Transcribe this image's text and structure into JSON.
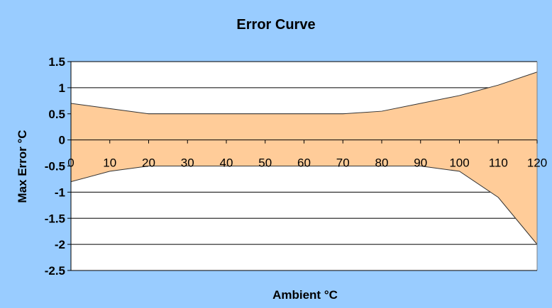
{
  "chart_data": {
    "type": "area",
    "title": "Error Curve",
    "xlabel": "Ambient °C",
    "ylabel": "Max Error °C",
    "x": [
      0,
      10,
      20,
      30,
      40,
      50,
      60,
      70,
      80,
      90,
      100,
      110,
      120
    ],
    "series": [
      {
        "values": [
          0.7,
          0.6,
          0.5,
          0.5,
          0.5,
          0.5,
          0.5,
          0.5,
          0.55,
          0.7,
          0.85,
          1.05,
          1.3
        ]
      },
      {
        "values": [
          -0.8,
          -0.6,
          -0.5,
          -0.5,
          -0.5,
          -0.5,
          -0.5,
          -0.5,
          -0.5,
          -0.5,
          -0.6,
          -1.1,
          -2.0
        ]
      }
    ],
    "xlim": [
      0,
      120
    ],
    "ylim": [
      -2.5,
      1.5
    ],
    "yticks": [
      "1.5",
      "1",
      "0.5",
      "0",
      "-0.5",
      "-1",
      "-1.5",
      "-2",
      "-2.5"
    ],
    "xticks": [
      "0",
      "10",
      "20",
      "30",
      "40",
      "50",
      "60",
      "70",
      "80",
      "90",
      "100",
      "110",
      "120"
    ],
    "grid": true,
    "fill_color": "#FFCC99",
    "background_color": "#99CCFF",
    "plot_area_color": "#FFFFFF"
  }
}
